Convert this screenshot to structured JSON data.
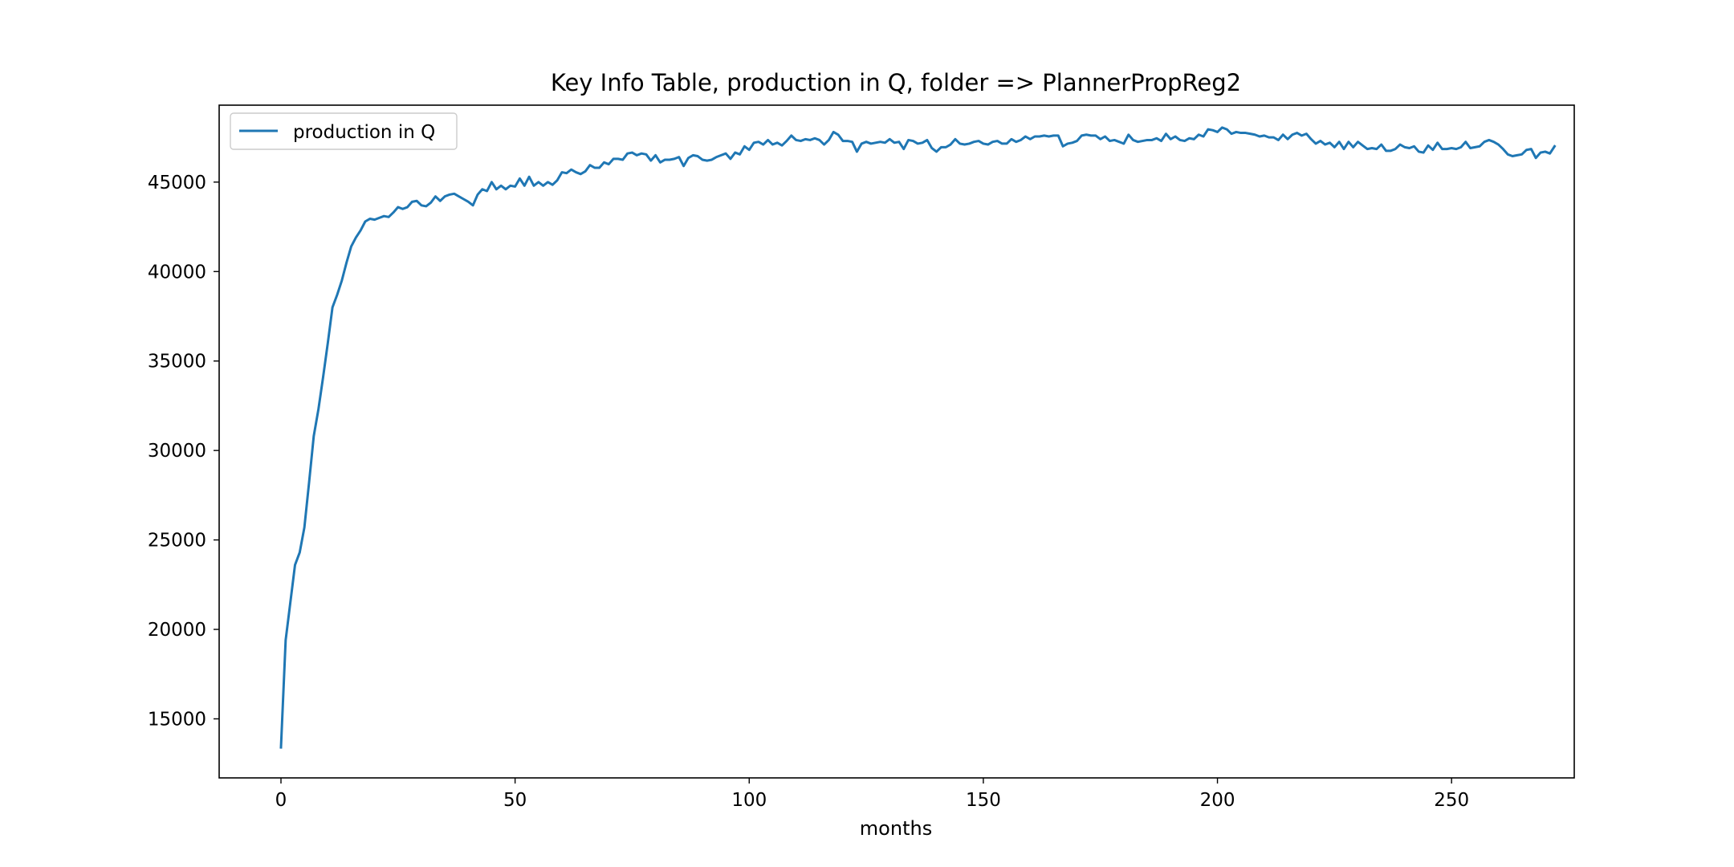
{
  "chart_data": {
    "type": "line",
    "title": "Key Info Table, production in Q, folder => PlannerPropReg2",
    "xlabel": "months",
    "ylabel": "",
    "xlim": [
      -13.2,
      276.2
    ],
    "ylim": [
      11700,
      49300
    ],
    "x_ticks": [
      0,
      50,
      100,
      150,
      200,
      250
    ],
    "y_ticks": [
      15000,
      20000,
      25000,
      30000,
      35000,
      40000,
      45000
    ],
    "grid": false,
    "legend": {
      "position": "top-left",
      "entries": [
        "production in Q"
      ]
    },
    "series": [
      {
        "name": "production in Q",
        "color": "#1f77b4",
        "x_start": 0,
        "x_step": 1,
        "values": [
          13400,
          19400,
          21500,
          23600,
          24300,
          25700,
          28200,
          30800,
          32300,
          34100,
          36000,
          38000,
          38700,
          39500,
          40500,
          41400,
          41900,
          42300,
          42800,
          42950,
          42900,
          43000,
          43100,
          43050,
          43300,
          43600,
          43500,
          43600,
          43900,
          43950,
          43700,
          43650,
          43850,
          44200,
          43950,
          44200,
          44300,
          44350,
          44200,
          44050,
          43900,
          43700,
          44300,
          44600,
          44500,
          45000,
          44600,
          44800,
          44600,
          44800,
          44750,
          45200,
          44800,
          45300,
          44800,
          45000,
          44800,
          45000,
          44850,
          45100,
          45550,
          45500,
          45700,
          45550,
          45450,
          45600,
          45950,
          45800,
          45800,
          46100,
          46000,
          46300,
          46300,
          46250,
          46600,
          46650,
          46500,
          46600,
          46550,
          46200,
          46500,
          46100,
          46250,
          46250,
          46300,
          46400,
          45900,
          46350,
          46500,
          46450,
          46250,
          46200,
          46250,
          46400,
          46500,
          46600,
          46300,
          46650,
          46550,
          47000,
          46800,
          47200,
          47250,
          47100,
          47350,
          47100,
          47200,
          47050,
          47300,
          47600,
          47350,
          47300,
          47400,
          47350,
          47450,
          47350,
          47100,
          47350,
          47800,
          47650,
          47300,
          47300,
          47250,
          46700,
          47150,
          47250,
          47150,
          47200,
          47250,
          47200,
          47400,
          47200,
          47250,
          46850,
          47350,
          47300,
          47150,
          47200,
          47350,
          46900,
          46700,
          46950,
          46950,
          47100,
          47400,
          47150,
          47100,
          47150,
          47250,
          47300,
          47150,
          47100,
          47250,
          47300,
          47150,
          47150,
          47400,
          47250,
          47350,
          47550,
          47400,
          47550,
          47550,
          47600,
          47550,
          47600,
          47600,
          47000,
          47150,
          47200,
          47300,
          47600,
          47650,
          47600,
          47600,
          47400,
          47550,
          47300,
          47350,
          47250,
          47150,
          47650,
          47350,
          47250,
          47300,
          47350,
          47350,
          47450,
          47300,
          47700,
          47400,
          47550,
          47350,
          47300,
          47450,
          47400,
          47650,
          47550,
          47950,
          47900,
          47800,
          48050,
          47950,
          47700,
          47800,
          47750,
          47750,
          47700,
          47650,
          47550,
          47600,
          47500,
          47500,
          47350,
          47650,
          47400,
          47650,
          47750,
          47600,
          47700,
          47400,
          47150,
          47300,
          47100,
          47200,
          46950,
          47250,
          46850,
          47250,
          46950,
          47250,
          47050,
          46850,
          46900,
          46850,
          47100,
          46750,
          46750,
          46850,
          47100,
          46950,
          46900,
          47000,
          46700,
          46650,
          47050,
          46800,
          47200,
          46850,
          46850,
          46900,
          46850,
          46950,
          47250,
          46900,
          46950,
          47000,
          47250,
          47350,
          47250,
          47100,
          46850,
          46550,
          46450,
          46500,
          46550,
          46800,
          46850,
          46350,
          46650,
          46700,
          46600,
          47000
        ]
      }
    ]
  }
}
